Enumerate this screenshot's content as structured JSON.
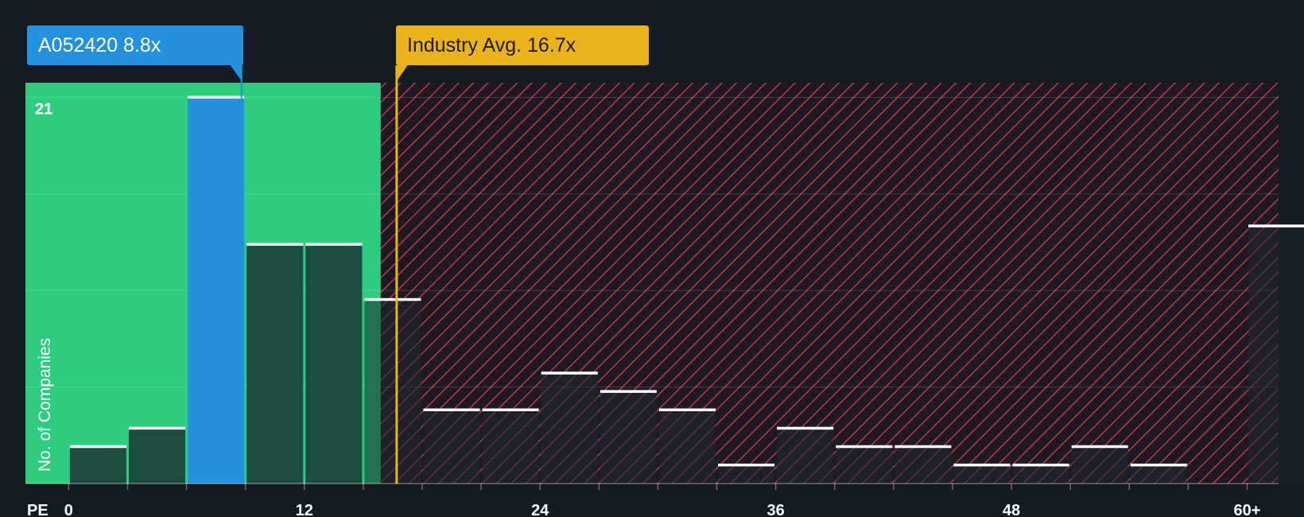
{
  "chart_data": {
    "type": "bar",
    "xlabel": "PE",
    "ylabel": "No. of Companies",
    "x_tick_labels": [
      "0",
      "12",
      "24",
      "36",
      "48",
      "60+"
    ],
    "x_tick_values": [
      0,
      12,
      24,
      36,
      48,
      60
    ],
    "y_tick_labels": [
      "21"
    ],
    "y_tick_values": [
      21
    ],
    "xlim": [
      -2.2,
      61.6
    ],
    "ylim": [
      0,
      21.8
    ],
    "bin_width": 3,
    "bin_starts": [
      0,
      3,
      6,
      9,
      12,
      15,
      18,
      21,
      24,
      27,
      30,
      33,
      36,
      39,
      42,
      45,
      48,
      51,
      54,
      57,
      60
    ],
    "values": [
      2,
      3,
      21,
      13,
      13,
      10,
      4,
      4,
      6,
      5,
      4,
      1,
      3,
      2,
      2,
      1,
      1,
      2,
      1,
      0,
      14
    ],
    "company": {
      "label": "A052420 8.8x",
      "pe": 8.8,
      "bin_start": 6
    },
    "industry_avg": {
      "label": "Industry Avg. 16.7x",
      "pe": 16.7
    },
    "colors": {
      "background": "#151b24",
      "fair_zone": "#2ecc7f",
      "overvalued_hatch": "#d63c48",
      "company_bar": "#2390e0",
      "bar_dark": "#1d4d40",
      "industry_line": "#ecb21a",
      "bar_cap": "#ffffff"
    }
  }
}
